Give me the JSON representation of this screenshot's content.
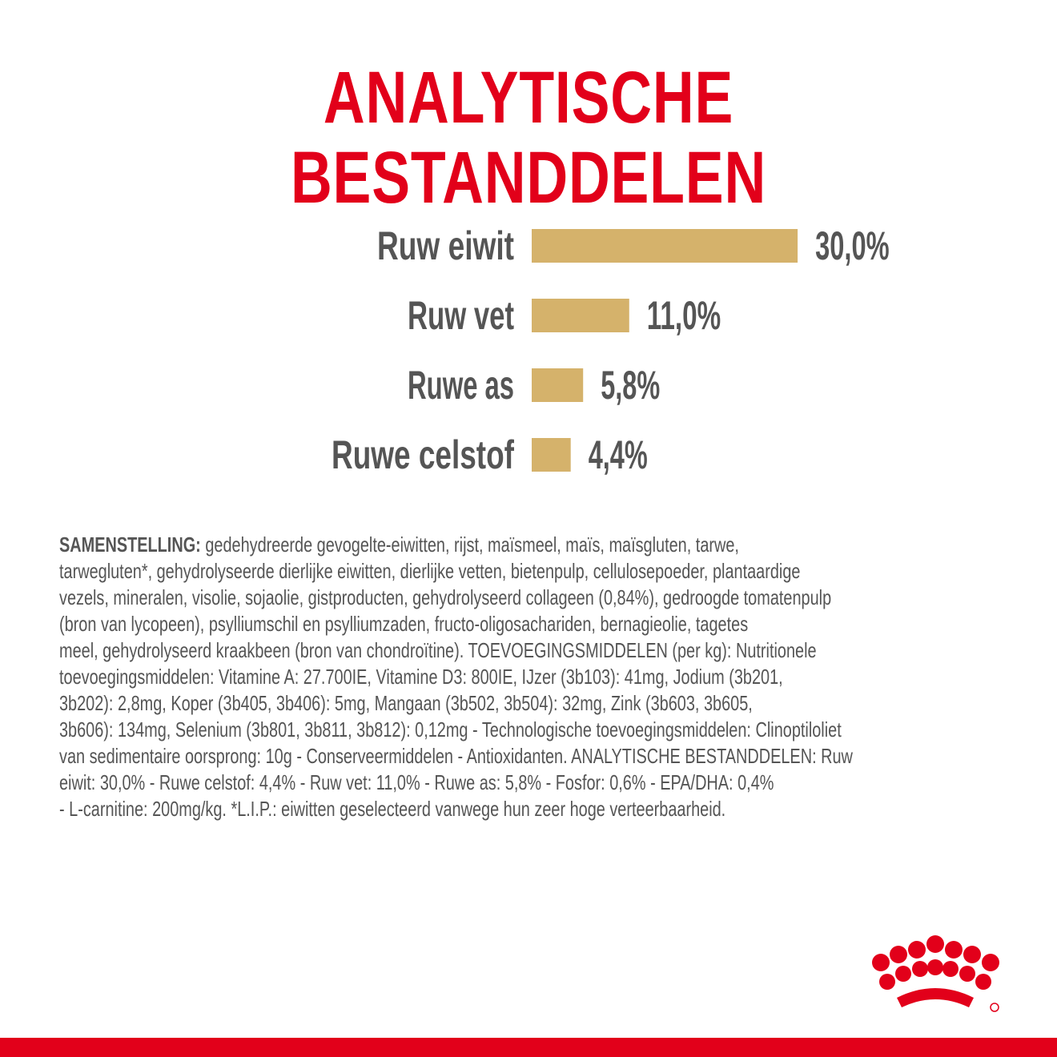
{
  "title": "ANALYTISCHE BESTANDDELEN",
  "chart_data": {
    "type": "bar",
    "orientation": "horizontal",
    "title": "ANALYTISCHE BESTANDDELEN",
    "categories": [
      "Ruw eiwit",
      "Ruw vet",
      "Ruwe as",
      "Ruwe celstof"
    ],
    "values": [
      30.0,
      11.0,
      5.8,
      4.4
    ],
    "value_labels": [
      "30,0%",
      "11,0%",
      "5,8%",
      "4,4%"
    ],
    "unit": "%",
    "bar_color": "#d5b26b",
    "text_color": "#555555"
  },
  "composition": {
    "lead": "SAMENSTELLING:",
    "lines": [
      "gedehydreerde gevogelte-eiwitten, rijst, maïsmeel, maïs, maïsgluten, tarwe,",
      "tarwegluten*, gehydrolyseerde dierlijke eiwitten, dierlijke vetten, bietenpulp, cellulosepoeder, plantaardige",
      "vezels, mineralen, visolie, sojaolie, gistproducten, gehydrolyseerd collageen (0,84%), gedroogde tomatenpulp",
      "(bron van lycopeen), psylliumschil en psylliumzaden, fructo-oligosachariden, bernagieolie, tagetes",
      "meel, gehydrolyseerd kraakbeen (bron van chondroïtine). TOEVOEGINGSMIDDELEN (per kg): Nutritionele",
      "toevoegingsmiddelen: Vitamine A: 27.700IE, Vitamine D3: 800IE, IJzer (3b103): 41mg, Jodium (3b201,",
      "3b202): 2,8mg, Koper (3b405, 3b406): 5mg, Mangaan (3b502, 3b504): 32mg, Zink (3b603, 3b605,",
      "3b606): 134mg, Selenium (3b801, 3b811, 3b812): 0,12mg - Technologische toevoegingsmiddelen: Clinoptiloliet",
      "van sedimentaire oorsprong: 10g - Conserveermiddelen - Antioxidanten. ANALYTISCHE BESTANDDELEN: Ruw",
      "eiwit: 30,0% - Ruwe celstof: 4,4% - Ruw vet: 11,0% - Ruwe as: 5,8% - Fosfor: 0,6% - EPA/DHA: 0,4%",
      "- L-carnitine: 200mg/kg. *L.I.P.: eiwitten geselecteerd vanwege hun zeer hoge verteerbaarheid."
    ]
  },
  "brand": {
    "logo_icon": "royal-canin-crown-logo",
    "color": "#e2001a"
  }
}
